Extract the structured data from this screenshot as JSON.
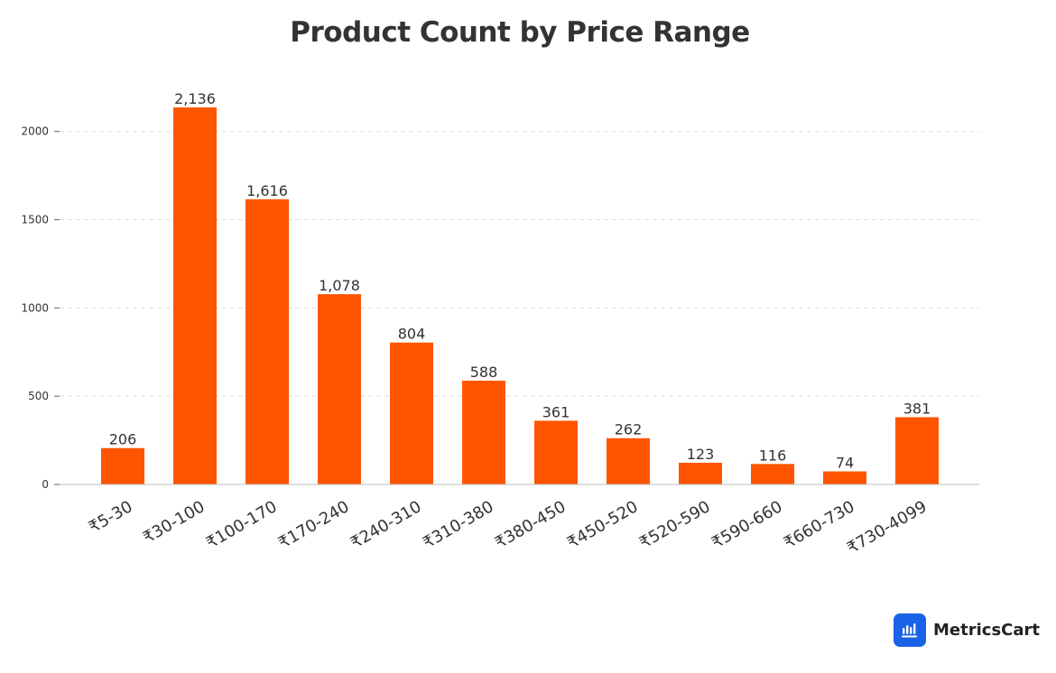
{
  "chart_data": {
    "type": "bar",
    "title": "Product Count by Price Range",
    "xlabel": "",
    "ylabel": "",
    "categories": [
      "₹5-30",
      "₹30-100",
      "₹100-170",
      "₹170-240",
      "₹240-310",
      "₹310-380",
      "₹380-450",
      "₹450-520",
      "₹520-590",
      "₹590-660",
      "₹660-730",
      "₹730-4099"
    ],
    "values": [
      206,
      2136,
      1616,
      1078,
      804,
      588,
      361,
      262,
      123,
      116,
      74,
      381
    ],
    "value_labels": [
      "206",
      "2,136",
      "1,616",
      "1,078",
      "804",
      "588",
      "361",
      "262",
      "123",
      "116",
      "74",
      "381"
    ],
    "yticks": [
      0,
      500,
      1000,
      1500,
      2000
    ],
    "ylim": [
      0,
      2300
    ],
    "grid": "horizontal dashed",
    "legend": "none",
    "bar_color": "#ff5500"
  },
  "brand": {
    "name": "MetricsCart",
    "logo_icon": "bar-chart-logo-icon",
    "logo_color": "#1a63e8"
  }
}
